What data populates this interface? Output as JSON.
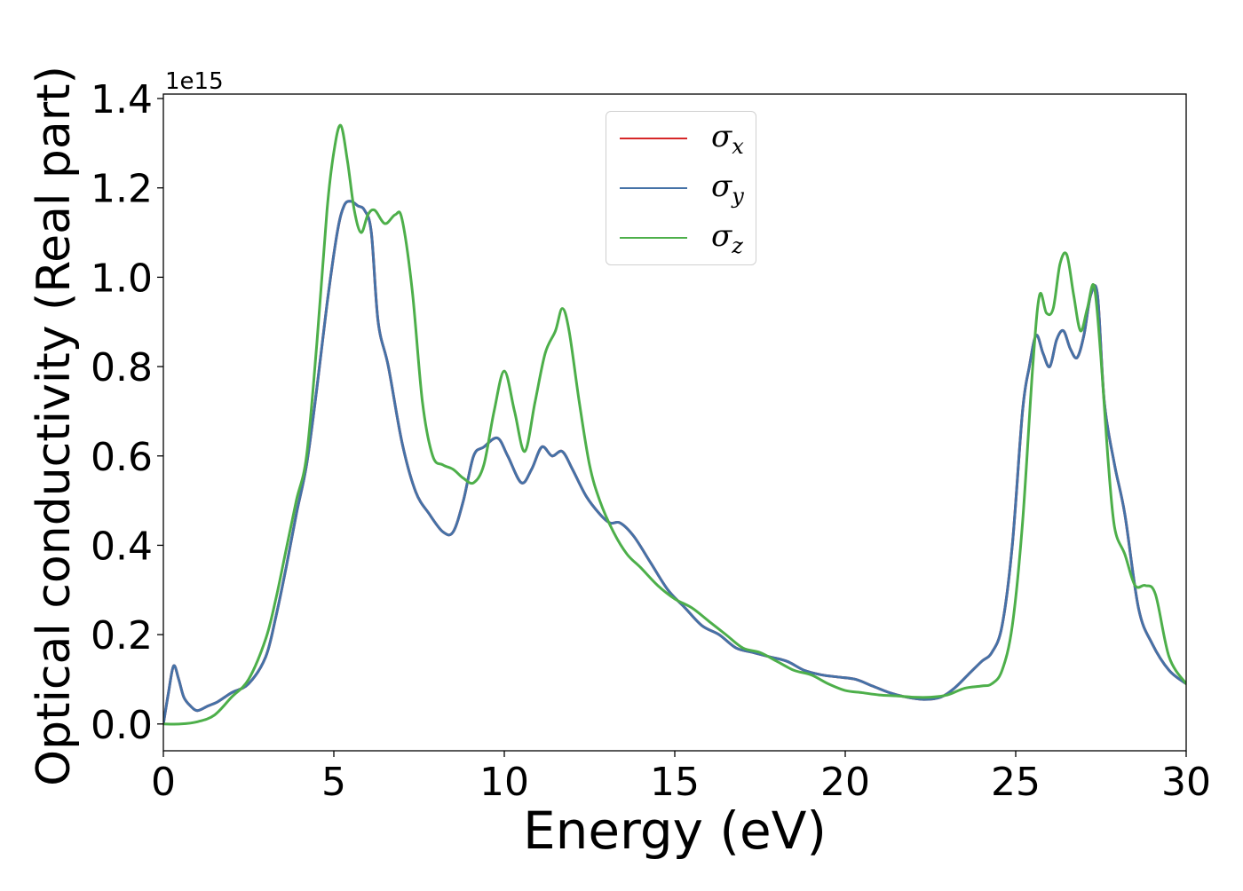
{
  "chart_data": {
    "type": "line",
    "xlabel": "Energy (eV)",
    "ylabel": "Optical conductivity (Real part)",
    "offset_text": "1e15",
    "xlim": [
      0,
      30
    ],
    "ylim": [
      -0.06,
      1.41
    ],
    "xticks": [
      0,
      5,
      10,
      15,
      20,
      25,
      30
    ],
    "yticks": [
      0.0,
      0.2,
      0.4,
      0.6,
      0.8,
      1.0,
      1.2,
      1.4
    ],
    "xtick_labels": [
      "0",
      "5",
      "10",
      "15",
      "20",
      "25",
      "30"
    ],
    "ytick_labels": [
      "0.0",
      "0.2",
      "0.4",
      "0.6",
      "0.8",
      "1.0",
      "1.2",
      "1.4"
    ],
    "grid": false,
    "legend_position": "top-center",
    "series": [
      {
        "name": "σx",
        "symbol": "σ",
        "subscript": "x",
        "color": "#d62728",
        "x": [
          0,
          0.15,
          0.3,
          0.45,
          0.6,
          0.8,
          1.0,
          1.3,
          1.6,
          2.0,
          2.5,
          3.0,
          3.3,
          3.6,
          3.9,
          4.2,
          4.5,
          4.8,
          5.1,
          5.3,
          5.5,
          5.7,
          5.9,
          6.1,
          6.3,
          6.6,
          7.0,
          7.4,
          7.8,
          8.2,
          8.5,
          8.8,
          9.1,
          9.4,
          9.8,
          10.1,
          10.5,
          10.8,
          11.1,
          11.4,
          11.7,
          12.0,
          12.4,
          12.8,
          13.1,
          13.4,
          13.8,
          14.3,
          14.8,
          15.3,
          15.8,
          16.3,
          16.8,
          17.3,
          17.8,
          18.3,
          18.8,
          19.3,
          19.8,
          20.3,
          20.8,
          21.3,
          21.8,
          22.3,
          22.8,
          23.2,
          23.6,
          24.0,
          24.3,
          24.6,
          24.9,
          25.2,
          25.4,
          25.6,
          25.8,
          26.0,
          26.2,
          26.4,
          26.6,
          26.8,
          27.0,
          27.2,
          27.4,
          27.6,
          27.9,
          28.2,
          28.6,
          29.0,
          29.5,
          30.0
        ],
        "y": [
          0,
          0.07,
          0.13,
          0.1,
          0.06,
          0.04,
          0.03,
          0.04,
          0.05,
          0.07,
          0.09,
          0.15,
          0.24,
          0.35,
          0.47,
          0.58,
          0.75,
          0.94,
          1.1,
          1.16,
          1.17,
          1.16,
          1.15,
          1.1,
          0.9,
          0.8,
          0.63,
          0.52,
          0.47,
          0.43,
          0.43,
          0.5,
          0.6,
          0.62,
          0.64,
          0.6,
          0.54,
          0.57,
          0.62,
          0.6,
          0.61,
          0.57,
          0.51,
          0.47,
          0.45,
          0.45,
          0.42,
          0.36,
          0.3,
          0.26,
          0.22,
          0.2,
          0.17,
          0.16,
          0.15,
          0.14,
          0.12,
          0.11,
          0.105,
          0.1,
          0.085,
          0.07,
          0.06,
          0.055,
          0.06,
          0.08,
          0.11,
          0.14,
          0.16,
          0.22,
          0.4,
          0.7,
          0.8,
          0.87,
          0.83,
          0.8,
          0.86,
          0.88,
          0.84,
          0.82,
          0.87,
          0.96,
          0.96,
          0.72,
          0.58,
          0.47,
          0.26,
          0.18,
          0.12,
          0.09
        ]
      },
      {
        "name": "σy",
        "symbol": "σ",
        "subscript": "y",
        "color": "#4572a7",
        "x": [
          0,
          0.15,
          0.3,
          0.45,
          0.6,
          0.8,
          1.0,
          1.3,
          1.6,
          2.0,
          2.5,
          3.0,
          3.3,
          3.6,
          3.9,
          4.2,
          4.5,
          4.8,
          5.1,
          5.3,
          5.5,
          5.7,
          5.9,
          6.1,
          6.3,
          6.6,
          7.0,
          7.4,
          7.8,
          8.2,
          8.5,
          8.8,
          9.1,
          9.4,
          9.8,
          10.1,
          10.5,
          10.8,
          11.1,
          11.4,
          11.7,
          12.0,
          12.4,
          12.8,
          13.1,
          13.4,
          13.8,
          14.3,
          14.8,
          15.3,
          15.8,
          16.3,
          16.8,
          17.3,
          17.8,
          18.3,
          18.8,
          19.3,
          19.8,
          20.3,
          20.8,
          21.3,
          21.8,
          22.3,
          22.8,
          23.2,
          23.6,
          24.0,
          24.3,
          24.6,
          24.9,
          25.2,
          25.4,
          25.6,
          25.8,
          26.0,
          26.2,
          26.4,
          26.6,
          26.8,
          27.0,
          27.2,
          27.4,
          27.6,
          27.9,
          28.2,
          28.6,
          29.0,
          29.5,
          30.0
        ],
        "y": [
          0,
          0.07,
          0.13,
          0.1,
          0.06,
          0.04,
          0.03,
          0.04,
          0.05,
          0.07,
          0.09,
          0.15,
          0.24,
          0.35,
          0.47,
          0.58,
          0.75,
          0.94,
          1.1,
          1.16,
          1.17,
          1.16,
          1.15,
          1.1,
          0.9,
          0.8,
          0.63,
          0.52,
          0.47,
          0.43,
          0.43,
          0.5,
          0.6,
          0.62,
          0.64,
          0.6,
          0.54,
          0.57,
          0.62,
          0.6,
          0.61,
          0.57,
          0.51,
          0.47,
          0.45,
          0.45,
          0.42,
          0.36,
          0.3,
          0.26,
          0.22,
          0.2,
          0.17,
          0.16,
          0.15,
          0.14,
          0.12,
          0.11,
          0.105,
          0.1,
          0.085,
          0.07,
          0.06,
          0.055,
          0.06,
          0.08,
          0.11,
          0.14,
          0.16,
          0.22,
          0.4,
          0.7,
          0.8,
          0.87,
          0.83,
          0.8,
          0.86,
          0.88,
          0.84,
          0.82,
          0.87,
          0.96,
          0.96,
          0.72,
          0.58,
          0.47,
          0.26,
          0.18,
          0.12,
          0.09
        ]
      },
      {
        "name": "σz",
        "symbol": "σ",
        "subscript": "z",
        "color": "#4daf4a",
        "x": [
          0,
          0.5,
          1.0,
          1.5,
          2.0,
          2.5,
          3.0,
          3.3,
          3.6,
          3.9,
          4.2,
          4.5,
          4.8,
          5.0,
          5.2,
          5.4,
          5.6,
          5.8,
          6.0,
          6.2,
          6.5,
          6.8,
          7.0,
          7.3,
          7.6,
          7.9,
          8.2,
          8.5,
          8.8,
          9.1,
          9.4,
          9.7,
          10.0,
          10.3,
          10.6,
          10.9,
          11.2,
          11.5,
          11.7,
          11.9,
          12.2,
          12.5,
          12.8,
          13.2,
          13.6,
          14.0,
          14.5,
          15.0,
          15.5,
          16.0,
          16.5,
          17.0,
          17.5,
          18.0,
          18.5,
          19.0,
          19.5,
          20.0,
          20.5,
          21.0,
          21.5,
          22.0,
          22.5,
          23.0,
          23.5,
          24.0,
          24.3,
          24.6,
          24.9,
          25.2,
          25.5,
          25.7,
          25.9,
          26.1,
          26.3,
          26.5,
          26.7,
          26.9,
          27.1,
          27.3,
          27.5,
          27.7,
          27.9,
          28.2,
          28.5,
          28.8,
          29.1,
          29.5,
          30.0
        ],
        "y": [
          0,
          0,
          0.005,
          0.02,
          0.06,
          0.1,
          0.19,
          0.28,
          0.39,
          0.5,
          0.6,
          0.85,
          1.15,
          1.28,
          1.34,
          1.26,
          1.15,
          1.1,
          1.14,
          1.15,
          1.12,
          1.14,
          1.13,
          0.97,
          0.72,
          0.6,
          0.58,
          0.57,
          0.55,
          0.54,
          0.58,
          0.7,
          0.79,
          0.7,
          0.61,
          0.72,
          0.83,
          0.88,
          0.93,
          0.88,
          0.72,
          0.58,
          0.5,
          0.43,
          0.38,
          0.35,
          0.31,
          0.28,
          0.26,
          0.23,
          0.2,
          0.17,
          0.16,
          0.14,
          0.12,
          0.11,
          0.09,
          0.075,
          0.07,
          0.065,
          0.063,
          0.06,
          0.06,
          0.065,
          0.08,
          0.085,
          0.09,
          0.12,
          0.22,
          0.45,
          0.8,
          0.96,
          0.92,
          0.93,
          1.03,
          1.05,
          0.96,
          0.88,
          0.93,
          0.98,
          0.82,
          0.6,
          0.44,
          0.38,
          0.31,
          0.31,
          0.29,
          0.15,
          0.09
        ]
      }
    ]
  }
}
